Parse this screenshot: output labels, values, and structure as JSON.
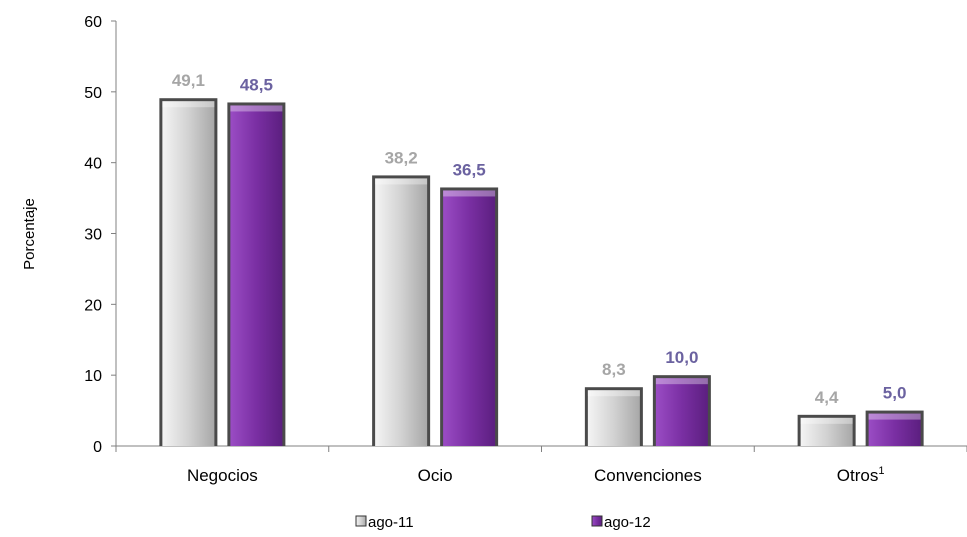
{
  "chart_data": {
    "type": "bar",
    "categories": [
      "Negocios",
      "Ocio",
      "Convenciones",
      "Otros"
    ],
    "category_superscripts": [
      "",
      "",
      "",
      "1"
    ],
    "ylabel": "Porcentaje",
    "ylim": [
      0,
      60
    ],
    "yticks": [
      "0",
      "10",
      "20",
      "30",
      "40",
      "50",
      "60"
    ],
    "grid": false,
    "legend_position": "bottom",
    "series": [
      {
        "name": "ago-11",
        "values": [
          49.1,
          38.2,
          8.3,
          4.4
        ],
        "labels": [
          "49,1",
          "38,2",
          "8,3",
          "4,4"
        ],
        "color": "#c8c8c8",
        "label_color": "#a6a6a6"
      },
      {
        "name": "ago-12",
        "values": [
          48.5,
          36.5,
          10.0,
          5.0
        ],
        "labels": [
          "48,5",
          "36,5",
          "10,0",
          "5,0"
        ],
        "color": "#7a2fa3",
        "label_color": "#6b62a0"
      }
    ]
  }
}
